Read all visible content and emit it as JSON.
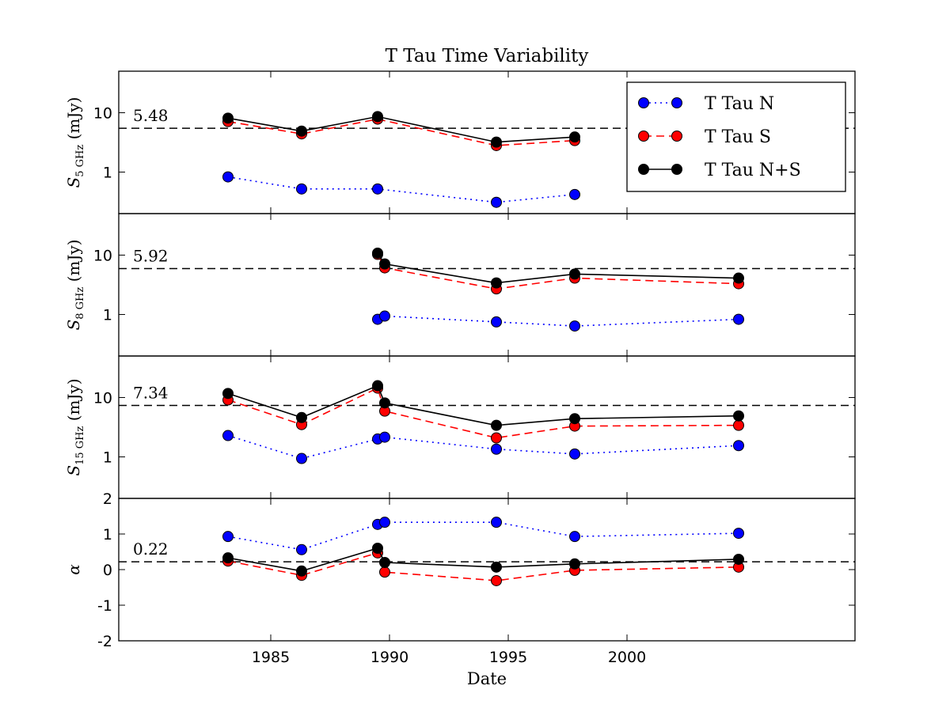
{
  "chart_data": [
    {
      "type": "line",
      "title": "T Tau Time Variability",
      "ylabel": "S",
      "ylabel_sub": "5 GHz",
      "ylabel_unit": "(mJy)",
      "yscale": "log",
      "xlim": [
        1978.6,
        2009.6
      ],
      "xticks": [
        1985,
        1990,
        1995,
        2000
      ],
      "ylim": [
        0.2,
        50
      ],
      "yticks": [
        1,
        10
      ],
      "hline": 5.48,
      "legend": "upper right",
      "x": [
        1983.2,
        1986.3,
        1989.5,
        1994.5,
        1997.8
      ],
      "series": [
        {
          "name": "T Tau N",
          "color": "#0000ff",
          "linestyle": "dotted",
          "values": [
            0.83,
            0.52,
            0.52,
            0.31,
            0.42
          ]
        },
        {
          "name": "T Tau S",
          "color": "#ff0000",
          "linestyle": "dashed",
          "values": [
            7.1,
            4.4,
            7.8,
            2.8,
            3.4
          ]
        },
        {
          "name": "T Tau N+S",
          "color": "#000000",
          "linestyle": "solid",
          "values": [
            8.1,
            4.9,
            8.6,
            3.2,
            3.9
          ]
        }
      ]
    },
    {
      "type": "line",
      "ylabel": "S",
      "ylabel_sub": "8 GHz",
      "ylabel_unit": "(mJy)",
      "yscale": "log",
      "xlim": [
        1978.6,
        2009.6
      ],
      "xticks": [
        1985,
        1990,
        1995,
        2000
      ],
      "ylim": [
        0.2,
        50
      ],
      "yticks": [
        1,
        10
      ],
      "hline": 5.92,
      "x": [
        1989.5,
        1989.8,
        1994.5,
        1997.8,
        2004.7
      ],
      "series": [
        {
          "name": "T Tau N",
          "color": "#0000ff",
          "linestyle": "dotted",
          "values": [
            0.83,
            0.94,
            0.75,
            0.64,
            0.83
          ]
        },
        {
          "name": "T Tau S",
          "color": "#ff0000",
          "linestyle": "dashed",
          "values": [
            10.3,
            6.1,
            2.7,
            4.1,
            3.3
          ]
        },
        {
          "name": "T Tau N+S",
          "color": "#000000",
          "linestyle": "solid",
          "values": [
            10.8,
            7.1,
            3.4,
            4.8,
            4.1
          ]
        }
      ]
    },
    {
      "type": "line",
      "ylabel": "S",
      "ylabel_sub": "15 GHz",
      "ylabel_unit": "(mJy)",
      "yscale": "log",
      "xlim": [
        1978.6,
        2009.6
      ],
      "xticks": [
        1985,
        1990,
        1995,
        2000
      ],
      "ylim": [
        0.2,
        50
      ],
      "yticks": [
        1,
        10
      ],
      "hline": 7.34,
      "x": [
        1983.2,
        1986.3,
        1989.5,
        1989.8,
        1994.5,
        1997.8,
        2004.7
      ],
      "series": [
        {
          "name": "T Tau N",
          "color": "#0000ff",
          "linestyle": "dotted",
          "values": [
            2.29,
            0.94,
            2.0,
            2.15,
            1.35,
            1.12,
            1.55
          ]
        },
        {
          "name": "T Tau S",
          "color": "#ff0000",
          "linestyle": "dashed",
          "values": [
            9.1,
            3.5,
            14.4,
            5.9,
            2.09,
            3.3,
            3.4
          ]
        },
        {
          "name": "T Tau N+S",
          "color": "#000000",
          "linestyle": "solid",
          "values": [
            11.7,
            4.6,
            15.8,
            8.1,
            3.4,
            4.4,
            4.9
          ]
        }
      ]
    },
    {
      "type": "line",
      "ylabel": "α",
      "xlabel": "Date",
      "yscale": "linear",
      "xlim": [
        1978.6,
        2009.6
      ],
      "xticks": [
        1985,
        1990,
        1995,
        2000
      ],
      "ylim": [
        -2,
        2
      ],
      "yticks": [
        -2,
        -1,
        0,
        1,
        2
      ],
      "hline": 0.22,
      "x": [
        1983.2,
        1986.3,
        1989.5,
        1989.8,
        1994.5,
        1997.8,
        2004.7
      ],
      "series": [
        {
          "name": "T Tau N",
          "color": "#0000ff",
          "linestyle": "dotted",
          "values": [
            0.93,
            0.56,
            1.27,
            1.33,
            1.33,
            0.93,
            1.02
          ]
        },
        {
          "name": "T Tau S",
          "color": "#ff0000",
          "linestyle": "dashed",
          "values": [
            0.24,
            -0.16,
            0.47,
            -0.07,
            -0.31,
            -0.02,
            0.07
          ]
        },
        {
          "name": "T Tau N+S",
          "color": "#000000",
          "linestyle": "solid",
          "values": [
            0.33,
            -0.04,
            0.6,
            0.2,
            0.07,
            0.16,
            0.29
          ]
        }
      ]
    }
  ]
}
